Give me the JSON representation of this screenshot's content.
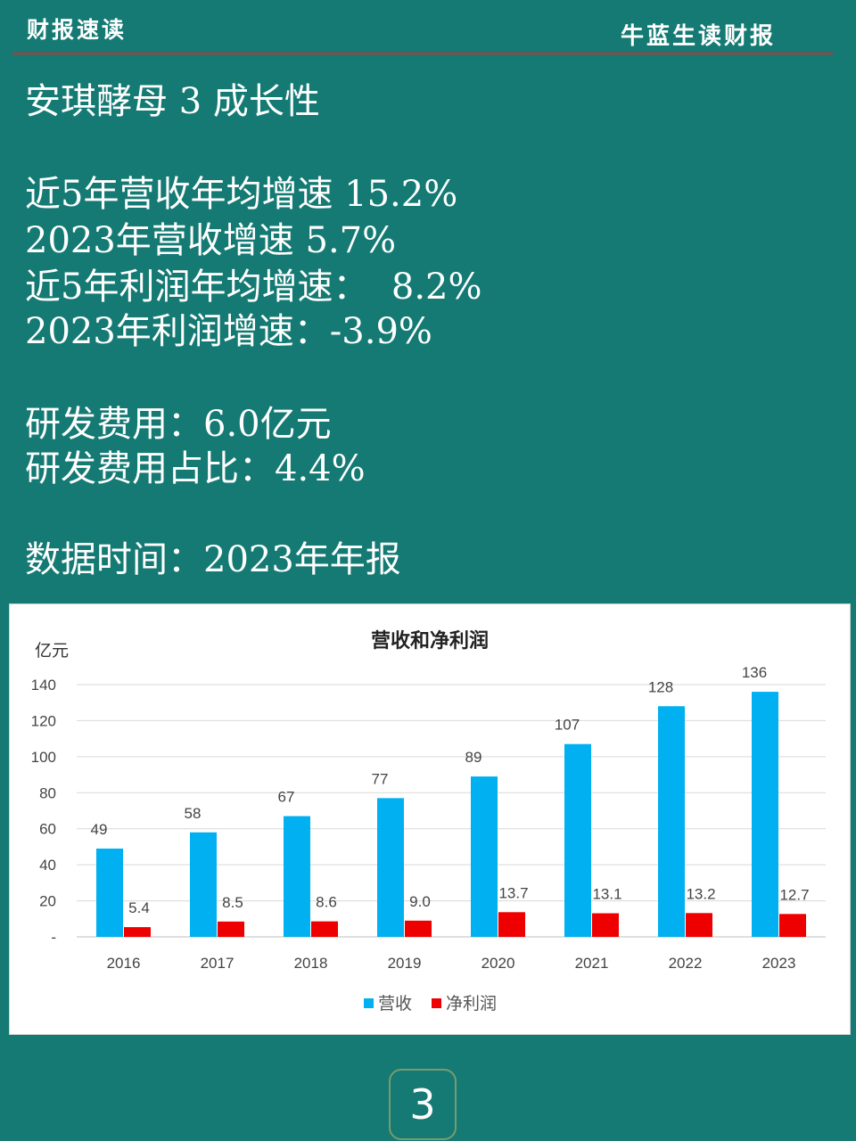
{
  "header": {
    "left_label": "财报速读",
    "right_label": "牛蓝生读财报"
  },
  "summary": {
    "title": "安琪酵母 3 成长性",
    "revenue_cagr": "近5年营收年均增速 15.2%",
    "revenue_growth_2023": "2023年营收增速 5.7%",
    "profit_cagr": "近5年利润年均增速：  8.2%",
    "profit_growth_2023": "2023年利润增速：-3.9%",
    "rd_expense": "研发费用：6.0亿元",
    "rd_ratio": "研发费用占比：4.4%",
    "data_period": "数据时间：2023年年报"
  },
  "page_number": "3",
  "colors": {
    "background": "#147a73",
    "revenue": "#00b0f0",
    "net_profit": "#ee0000",
    "header_rule": "#d32c2c"
  },
  "chart_data": {
    "type": "bar",
    "title": "营收和净利润",
    "ylabel": "亿元",
    "xlabel": "",
    "categories": [
      "2016",
      "2017",
      "2018",
      "2019",
      "2020",
      "2021",
      "2022",
      "2023"
    ],
    "series": [
      {
        "name": "营收",
        "values": [
          49,
          58,
          67,
          77,
          89,
          107,
          128,
          136
        ],
        "labels": [
          "49",
          "58",
          "67",
          "77",
          "89",
          "107",
          "128",
          "136"
        ]
      },
      {
        "name": "净利润",
        "values": [
          5.4,
          8.5,
          8.6,
          9.0,
          13.7,
          13.1,
          13.2,
          12.7
        ],
        "labels": [
          "5.4",
          "8.5",
          "8.6",
          "9.0",
          "13.7",
          "13.1",
          "13.2",
          "12.7"
        ]
      }
    ],
    "ylim": [
      0,
      140
    ],
    "yticks": [
      0,
      20,
      40,
      60,
      80,
      100,
      120,
      140
    ],
    "ytick_labels": [
      "-",
      "20",
      "40",
      "60",
      "80",
      "100",
      "120",
      "140"
    ],
    "grid": true,
    "legend": "bottom"
  }
}
